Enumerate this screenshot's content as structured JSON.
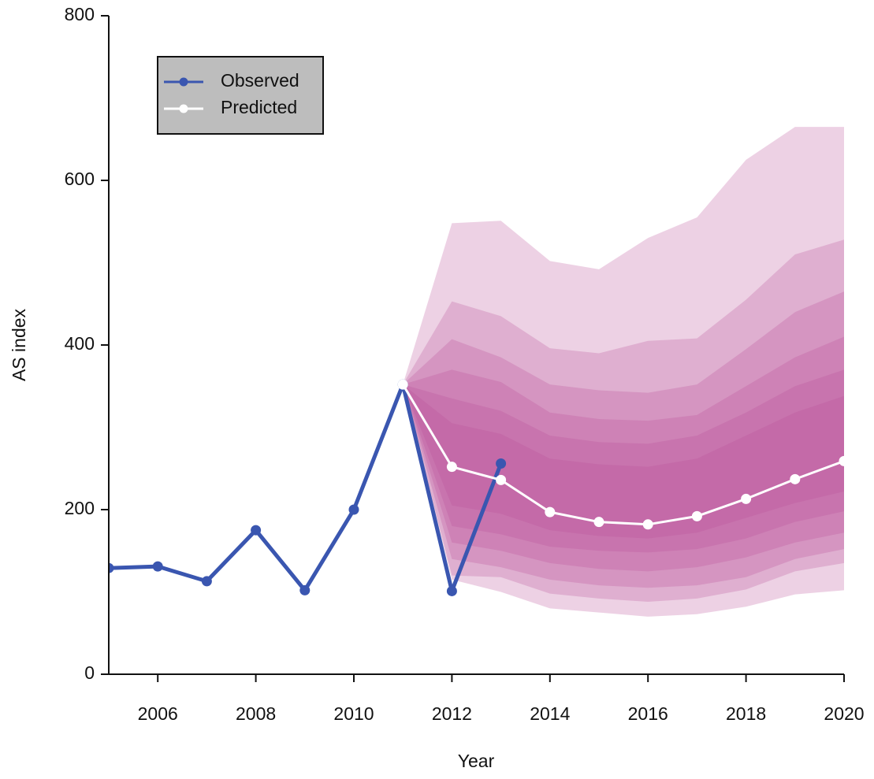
{
  "chart_data": {
    "type": "fan",
    "x_label": "Year",
    "y_label": "AS index",
    "xlim": [
      2005,
      2020
    ],
    "xticks": [
      2006,
      2008,
      2010,
      2012,
      2014,
      2016,
      2018,
      2020
    ],
    "ylim": [
      0,
      800
    ],
    "yticks": [
      0,
      200,
      400,
      600,
      800
    ],
    "grid": false,
    "legend_position": "upper left",
    "fan_color": "#b84d98",
    "fan_x": [
      2011,
      2012,
      2013,
      2014,
      2015,
      2016,
      2017,
      2018,
      2019,
      2020
    ],
    "bands": [
      {
        "upper": [
          352,
          548,
          551,
          502,
          492,
          530,
          555,
          625,
          665,
          665
        ],
        "lower": [
          352,
          115,
          100,
          80,
          75,
          70,
          73,
          82,
          97,
          102
        ]
      },
      {
        "upper": [
          352,
          453,
          435,
          396,
          390,
          405,
          408,
          455,
          510,
          528
        ],
        "lower": [
          352,
          120,
          118,
          98,
          92,
          88,
          92,
          103,
          125,
          135
        ]
      },
      {
        "upper": [
          352,
          407,
          385,
          352,
          345,
          342,
          352,
          395,
          440,
          465
        ],
        "lower": [
          352,
          140,
          130,
          115,
          108,
          105,
          108,
          118,
          140,
          152
        ]
      },
      {
        "upper": [
          352,
          370,
          355,
          318,
          310,
          308,
          315,
          350,
          385,
          410
        ],
        "lower": [
          352,
          160,
          150,
          135,
          128,
          125,
          130,
          142,
          160,
          172
        ]
      },
      {
        "upper": [
          352,
          335,
          320,
          290,
          282,
          280,
          290,
          318,
          350,
          370
        ],
        "lower": [
          352,
          180,
          170,
          155,
          150,
          148,
          152,
          165,
          185,
          198
        ]
      },
      {
        "upper": [
          352,
          305,
          292,
          262,
          255,
          252,
          262,
          290,
          318,
          338
        ],
        "lower": [
          352,
          205,
          195,
          175,
          168,
          165,
          172,
          190,
          208,
          222
        ]
      }
    ],
    "series": [
      {
        "name": "Observed",
        "color": "#3a56b0",
        "x": [
          2005,
          2006,
          2007,
          2008,
          2009,
          2010,
          2011,
          2012,
          2013
        ],
        "values": [
          129,
          131,
          113,
          175,
          102,
          200,
          352,
          101,
          256
        ]
      },
      {
        "name": "Predicted",
        "color": "#ffffff",
        "x": [
          2011,
          2012,
          2013,
          2014,
          2015,
          2016,
          2017,
          2018,
          2019,
          2020
        ],
        "values": [
          352,
          252,
          236,
          197,
          185,
          182,
          192,
          213,
          237,
          259
        ]
      }
    ]
  }
}
